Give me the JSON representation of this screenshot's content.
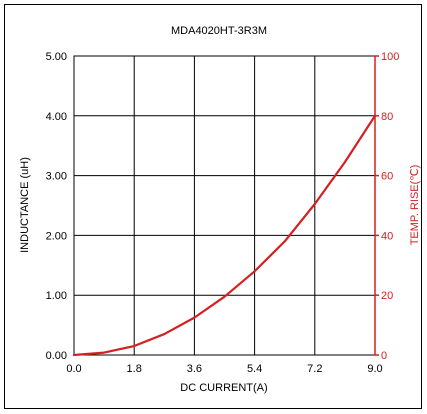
{
  "chart_data": {
    "type": "line",
    "title": "MDA4020HT-3R3M",
    "xlabel": "DC CURRENT(A)",
    "ylabel": "INDUCTANCE (uH)",
    "y2label": "TEMP. RISE(℃)",
    "xlim": [
      0,
      9.0
    ],
    "ylim": [
      0,
      5.0
    ],
    "y2lim": [
      0,
      100
    ],
    "x_ticks": [
      "0.0",
      "1.8",
      "3.6",
      "5.4",
      "7.2",
      "9.0"
    ],
    "y_ticks": [
      "0.00",
      "1.00",
      "2.00",
      "3.00",
      "4.00",
      "5.00"
    ],
    "y2_ticks": [
      "0",
      "20",
      "40",
      "60",
      "80",
      "100"
    ],
    "grid": true,
    "series": [
      {
        "axis": "right",
        "color": "#d42020",
        "x": [
          0.0,
          0.9,
          1.8,
          2.7,
          3.6,
          4.5,
          5.4,
          6.3,
          7.2,
          8.1,
          9.0
        ],
        "y": [
          0.0,
          0.8,
          3.0,
          7.0,
          12.5,
          19.5,
          28.0,
          38.0,
          50.5,
          64.5,
          80.0
        ]
      }
    ]
  },
  "colors": {
    "axis": "#000000",
    "grid": "#000000",
    "right_axis": "#d42020"
  }
}
